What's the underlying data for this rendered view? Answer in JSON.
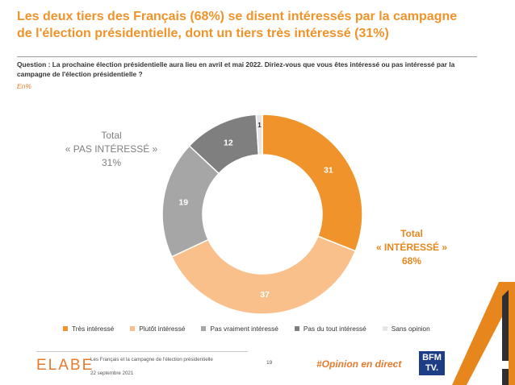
{
  "slide": {
    "title": "Les deux tiers des Français (68%) se disent intéressés par la campagne de l'élection présidentielle, dont un tiers très intéressé (31%)",
    "question": "Question : La prochaine élection présidentielle aura lieu en avril et mai 2022. Diriez-vous que vous êtes intéressé ou pas intéressé par la campagne de l'élection présidentielle ?",
    "unit_note": "En%"
  },
  "totals": {
    "negative": {
      "line1": "Total",
      "line2": "« PAS INTÉRESSÉ »",
      "line3": "31%"
    },
    "positive": {
      "line1": "Total",
      "line2": "« INTÉRESSÉ »",
      "line3": "68%"
    }
  },
  "chart_data": {
    "type": "pie",
    "donut": true,
    "categories": [
      "Très intéressé",
      "Plutôt intéressé",
      "Pas vraiment intéressé",
      "Pas du tout intéressé",
      "Sans opinion"
    ],
    "values": [
      31,
      37,
      19,
      12,
      1
    ],
    "colors": [
      "#F0932B",
      "#F9C08C",
      "#A6A6A6",
      "#7F7F7F",
      "#E6E6E6"
    ],
    "label_colors": [
      "#ffffff",
      "#ffffff",
      "#ffffff",
      "#ffffff",
      "#333333"
    ],
    "legend_position": "bottom"
  },
  "footer": {
    "logo": "ELABE",
    "study": "Les Français et la campagne de l'élection présidentielle",
    "date": "22 septembre 2021",
    "page_number": "19",
    "hashtag": "#Opinion en direct",
    "partner_logo_line1": "BFM",
    "partner_logo_line2": "TV."
  }
}
